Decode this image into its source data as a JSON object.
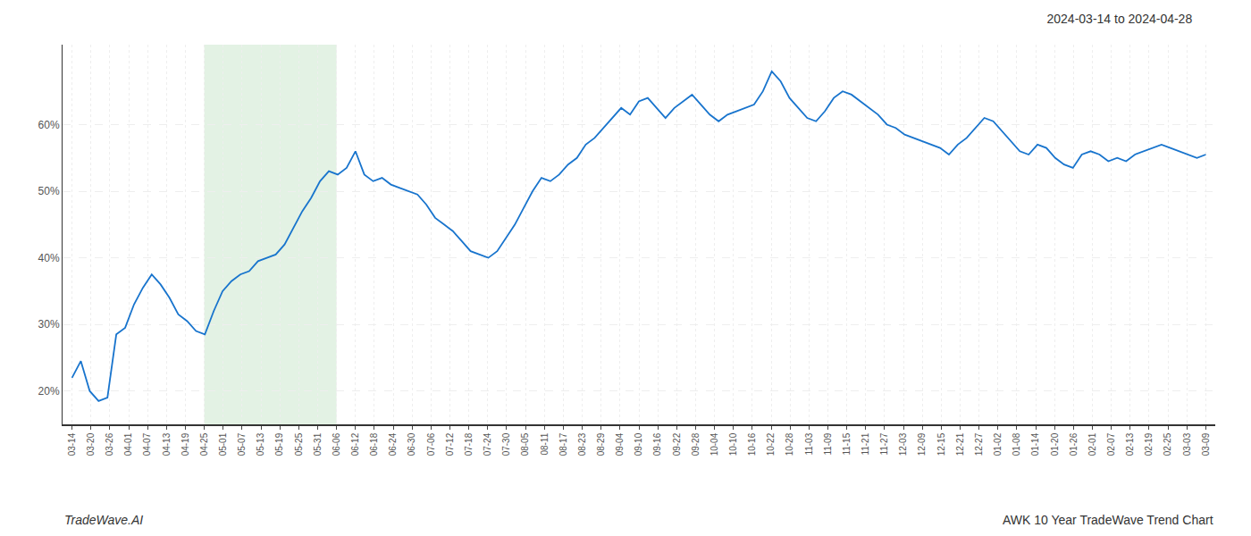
{
  "chart_data": {
    "type": "line",
    "title": "2024-03-14 to 2024-04-28",
    "annotations": [
      "TradeWave.AI",
      "AWK 10 Year TradeWave Trend Chart"
    ],
    "color": "#1874CD",
    "grid": true,
    "spans": [
      {
        "x0": 7,
        "x1": 14,
        "color": "#c8e6c9"
      }
    ],
    "xlim": [
      -0.5,
      60.5
    ],
    "xticks": [
      {
        "value": 0,
        "label": "03-14"
      },
      {
        "value": 1,
        "label": "03-20"
      },
      {
        "value": 2,
        "label": "03-26"
      },
      {
        "value": 3,
        "label": "04-01"
      },
      {
        "value": 4,
        "label": "04-07"
      },
      {
        "value": 5,
        "label": "04-13"
      },
      {
        "value": 6,
        "label": "04-19"
      },
      {
        "value": 7,
        "label": "04-25"
      },
      {
        "value": 8,
        "label": "05-01"
      },
      {
        "value": 9,
        "label": "05-07"
      },
      {
        "value": 10,
        "label": "05-13"
      },
      {
        "value": 11,
        "label": "05-19"
      },
      {
        "value": 12,
        "label": "05-25"
      },
      {
        "value": 13,
        "label": "05-31"
      },
      {
        "value": 14,
        "label": "06-06"
      },
      {
        "value": 15,
        "label": "06-12"
      },
      {
        "value": 16,
        "label": "06-18"
      },
      {
        "value": 17,
        "label": "06-24"
      },
      {
        "value": 18,
        "label": "06-30"
      },
      {
        "value": 19,
        "label": "07-06"
      },
      {
        "value": 20,
        "label": "07-12"
      },
      {
        "value": 21,
        "label": "07-18"
      },
      {
        "value": 22,
        "label": "07-24"
      },
      {
        "value": 23,
        "label": "07-30"
      },
      {
        "value": 24,
        "label": "08-05"
      },
      {
        "value": 25,
        "label": "08-11"
      },
      {
        "value": 26,
        "label": "08-17"
      },
      {
        "value": 27,
        "label": "08-23"
      },
      {
        "value": 28,
        "label": "08-29"
      },
      {
        "value": 29,
        "label": "09-04"
      },
      {
        "value": 30,
        "label": "09-10"
      },
      {
        "value": 31,
        "label": "09-16"
      },
      {
        "value": 32,
        "label": "09-22"
      },
      {
        "value": 33,
        "label": "09-28"
      },
      {
        "value": 34,
        "label": "10-04"
      },
      {
        "value": 35,
        "label": "10-10"
      },
      {
        "value": 36,
        "label": "10-16"
      },
      {
        "value": 37,
        "label": "10-22"
      },
      {
        "value": 38,
        "label": "10-28"
      },
      {
        "value": 39,
        "label": "11-03"
      },
      {
        "value": 40,
        "label": "11-09"
      },
      {
        "value": 41,
        "label": "11-15"
      },
      {
        "value": 42,
        "label": "11-21"
      },
      {
        "value": 43,
        "label": "11-27"
      },
      {
        "value": 44,
        "label": "12-03"
      },
      {
        "value": 45,
        "label": "12-09"
      },
      {
        "value": 46,
        "label": "12-15"
      },
      {
        "value": 47,
        "label": "12-21"
      },
      {
        "value": 48,
        "label": "12-27"
      },
      {
        "value": 49,
        "label": "01-02"
      },
      {
        "value": 50,
        "label": "01-08"
      },
      {
        "value": 51,
        "label": "01-14"
      },
      {
        "value": 52,
        "label": "01-20"
      },
      {
        "value": 53,
        "label": "01-26"
      },
      {
        "value": 54,
        "label": "02-01"
      },
      {
        "value": 55,
        "label": "02-07"
      },
      {
        "value": 56,
        "label": "02-13"
      },
      {
        "value": 57,
        "label": "02-19"
      },
      {
        "value": 58,
        "label": "02-25"
      },
      {
        "value": 59,
        "label": "03-03"
      },
      {
        "value": 60,
        "label": "03-09"
      }
    ],
    "ylim": [
      15,
      72
    ],
    "yticks": [
      {
        "value": 20,
        "label": "20%"
      },
      {
        "value": 30,
        "label": "30%"
      },
      {
        "value": 40,
        "label": "40%"
      },
      {
        "value": 50,
        "label": "50%"
      },
      {
        "value": 60,
        "label": "60%"
      }
    ],
    "x": [
      0,
      0.46875,
      0.9375,
      1.40625,
      1.875,
      2.34375,
      2.8125,
      3.28125,
      3.75,
      4.21875,
      4.6875,
      5.15625,
      5.625,
      6.09375,
      6.5625,
      7.03125,
      7.5,
      7.96875,
      8.4375,
      8.90625,
      9.375,
      9.84375,
      10.3125,
      10.78125,
      11.25,
      11.71875,
      12.1875,
      12.65625,
      13.125,
      13.59375,
      14.0625,
      14.53125,
      15,
      15.46875,
      15.9375,
      16.40625,
      16.875,
      17.34375,
      17.8125,
      18.28125,
      18.75,
      19.21875,
      19.6875,
      20.15625,
      20.625,
      21.09375,
      21.5625,
      22.03125,
      22.5,
      22.96875,
      23.4375,
      23.90625,
      24.375,
      24.84375,
      25.3125,
      25.78125,
      26.25,
      26.71875,
      27.1875,
      27.65625,
      28.125,
      28.59375,
      29.0625,
      29.53125,
      30,
      30.46875,
      30.9375,
      31.40625,
      31.875,
      32.34375,
      32.8125,
      33.28125,
      33.75,
      34.21875,
      34.6875,
      35.15625,
      35.625,
      36.09375,
      36.5625,
      37.03125,
      37.5,
      37.96875,
      38.4375,
      38.90625,
      39.375,
      39.84375,
      40.3125,
      40.78125,
      41.25,
      41.71875,
      42.1875,
      42.65625,
      43.125,
      43.59375,
      44.0625,
      44.53125,
      45,
      45.46875,
      45.9375,
      46.40625,
      46.875,
      47.34375,
      47.8125,
      48.28125,
      48.75,
      49.21875,
      49.6875,
      50.15625,
      50.625,
      51.09375,
      51.5625,
      52.03125,
      52.5,
      52.96875,
      53.4375,
      53.90625,
      54.375,
      54.84375,
      55.3125,
      55.78125,
      56.25,
      56.71875,
      57.1875,
      57.65625,
      58.125,
      58.59375,
      59.0625,
      59.53125,
      60
    ],
    "values": [
      22.0,
      24.5,
      20.0,
      18.5,
      19.0,
      28.5,
      29.5,
      33.0,
      35.5,
      37.5,
      36.0,
      34.0,
      31.5,
      30.5,
      29.0,
      28.5,
      32.0,
      35.0,
      36.5,
      37.5,
      38.0,
      39.5,
      40.0,
      40.5,
      42.0,
      44.5,
      47.0,
      49.0,
      51.5,
      53.0,
      52.5,
      53.5,
      56.0,
      52.5,
      51.5,
      52.0,
      51.0,
      50.5,
      50.0,
      49.5,
      48.0,
      46.0,
      45.0,
      44.0,
      42.5,
      41.0,
      40.5,
      40.0,
      41.0,
      43.0,
      45.0,
      47.5,
      50.0,
      52.0,
      51.5,
      52.5,
      54.0,
      55.0,
      57.0,
      58.0,
      59.5,
      61.0,
      62.5,
      61.5,
      63.5,
      64.0,
      62.5,
      61.0,
      62.5,
      63.5,
      64.5,
      63.0,
      61.5,
      60.5,
      61.5,
      62.0,
      62.5,
      63.0,
      65.0,
      68.0,
      66.5,
      64.0,
      62.5,
      61.0,
      60.5,
      62.0,
      64.0,
      65.0,
      64.5,
      63.5,
      62.5,
      61.5,
      60.0,
      59.5,
      58.5,
      58.0,
      57.5,
      57.0,
      56.5,
      55.5,
      57.0,
      58.0,
      59.5,
      61.0,
      60.5,
      59.0,
      57.5,
      56.0,
      55.5,
      57.0,
      56.5,
      55.0,
      54.0,
      53.5,
      55.5,
      56.0,
      55.5,
      54.5,
      55.0,
      54.5,
      55.5,
      56.0,
      56.5,
      57.0,
      56.5,
      56.0,
      55.5,
      55.0,
      55.5
    ]
  }
}
